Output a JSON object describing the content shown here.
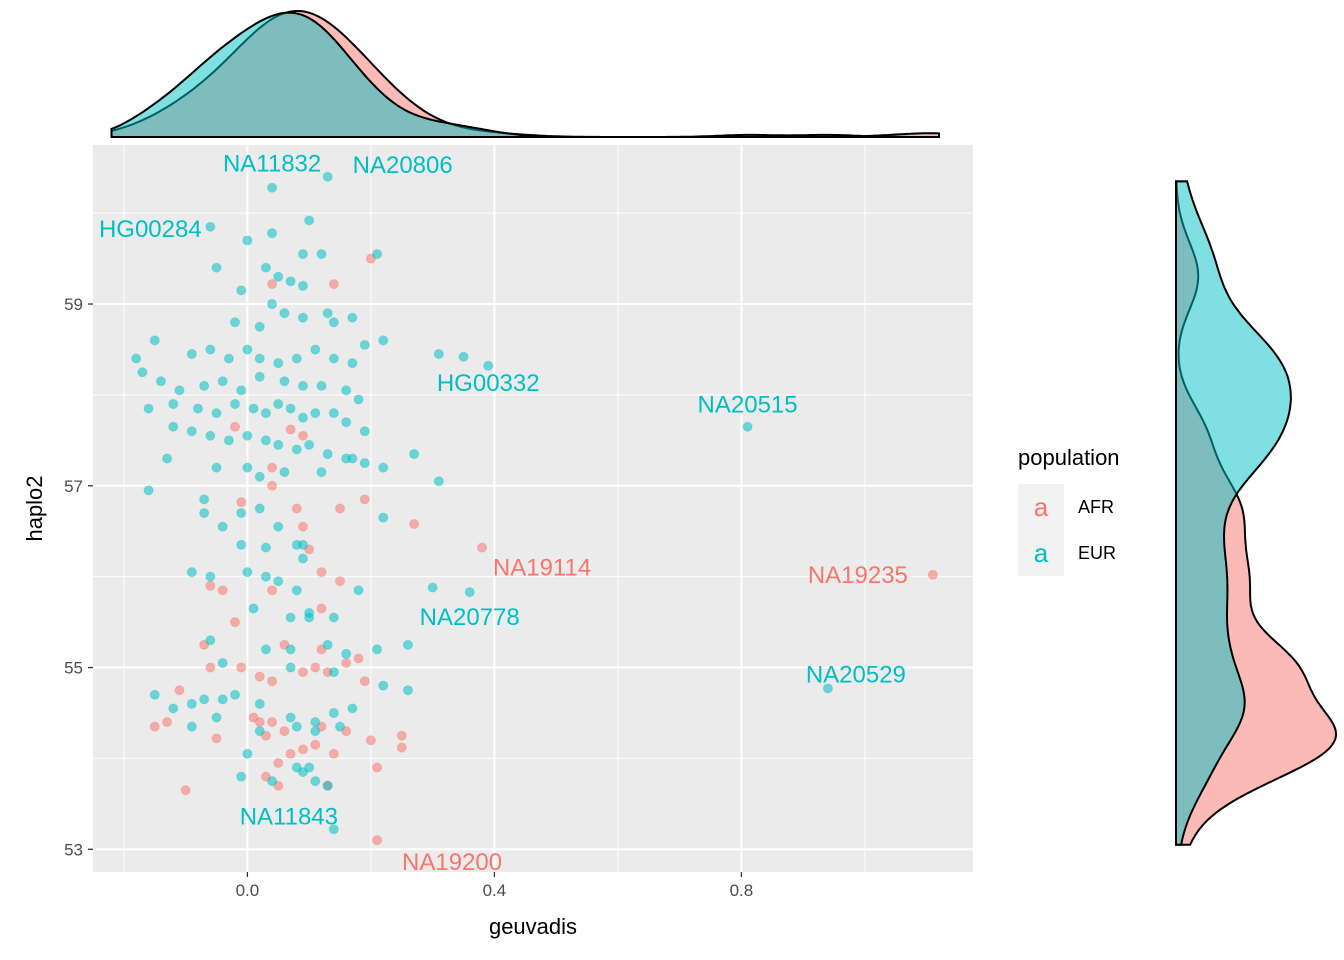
{
  "chart_data": {
    "type": "scatter",
    "xlabel": "geuvadis",
    "ylabel": "haplo2",
    "xlim": [
      -0.25,
      1.175
    ],
    "ylim": [
      52.75,
      60.75
    ],
    "x_ticks": [
      0.0,
      0.4,
      0.8
    ],
    "x_tick_labels": [
      "0.0",
      "0.4",
      "0.8"
    ],
    "y_ticks": [
      53,
      55,
      57,
      59
    ],
    "y_tick_labels": [
      "53",
      "55",
      "57",
      "59"
    ],
    "grid": true,
    "legend": {
      "title": "population",
      "placement": "right",
      "key_glyph": "a",
      "entries": [
        {
          "name": "AFR",
          "color": "#F8766D"
        },
        {
          "name": "EUR",
          "color": "#00BFC4"
        }
      ]
    },
    "colors": {
      "AFR": "#F8766D",
      "EUR": "#00BFC4"
    },
    "labeled_points": [
      {
        "label": "NA11832",
        "population": "EUR",
        "x": 0.04,
        "y": 60.28
      },
      {
        "label": "NA20806",
        "population": "EUR",
        "x": 0.13,
        "y": 60.4
      },
      {
        "label": "HG00284",
        "population": "EUR",
        "x": -0.06,
        "y": 59.85
      },
      {
        "label": "HG00332",
        "population": "EUR",
        "x": 0.39,
        "y": 58.32
      },
      {
        "label": "NA20515",
        "population": "EUR",
        "x": 0.81,
        "y": 57.65
      },
      {
        "label": "NA19114",
        "population": "AFR",
        "x": 0.38,
        "y": 56.32
      },
      {
        "label": "NA19235",
        "population": "AFR",
        "x": 1.11,
        "y": 56.02
      },
      {
        "label": "NA20778",
        "population": "EUR",
        "x": 0.36,
        "y": 55.83
      },
      {
        "label": "NA20529",
        "population": "EUR",
        "x": 0.94,
        "y": 54.77
      },
      {
        "label": "NA11843",
        "population": "EUR",
        "x": 0.14,
        "y": 53.22
      },
      {
        "label": "NA19200",
        "population": "AFR",
        "x": 0.21,
        "y": 53.1
      }
    ],
    "series": [
      {
        "name": "AFR",
        "points": [
          [
            0.04,
            59.22
          ],
          [
            0.14,
            59.22
          ],
          [
            0.2,
            59.5
          ],
          [
            -0.02,
            57.65
          ],
          [
            0.07,
            57.62
          ],
          [
            0.04,
            57.2
          ],
          [
            0.09,
            57.55
          ],
          [
            0.04,
            57.0
          ],
          [
            -0.01,
            56.82
          ],
          [
            0.08,
            56.75
          ],
          [
            0.09,
            56.55
          ],
          [
            0.15,
            56.75
          ],
          [
            0.19,
            56.85
          ],
          [
            0.27,
            56.58
          ],
          [
            0.1,
            56.3
          ],
          [
            0.38,
            56.32
          ],
          [
            0.12,
            56.05
          ],
          [
            0.15,
            55.95
          ],
          [
            -0.06,
            55.9
          ],
          [
            -0.04,
            55.85
          ],
          [
            0.04,
            55.85
          ],
          [
            0.12,
            55.65
          ],
          [
            -0.02,
            55.5
          ],
          [
            -0.07,
            55.25
          ],
          [
            0.06,
            55.25
          ],
          [
            0.12,
            55.2
          ],
          [
            0.18,
            55.1
          ],
          [
            -0.01,
            55.0
          ],
          [
            -0.06,
            55.0
          ],
          [
            0.02,
            54.9
          ],
          [
            0.04,
            54.85
          ],
          [
            0.09,
            54.95
          ],
          [
            0.11,
            55.0
          ],
          [
            0.13,
            54.95
          ],
          [
            0.16,
            55.05
          ],
          [
            0.19,
            54.85
          ],
          [
            -0.11,
            54.75
          ],
          [
            -0.13,
            54.4
          ],
          [
            -0.15,
            54.35
          ],
          [
            0.01,
            54.45
          ],
          [
            0.04,
            54.4
          ],
          [
            0.06,
            54.3
          ],
          [
            0.12,
            54.35
          ],
          [
            0.16,
            54.3
          ],
          [
            0.2,
            54.2
          ],
          [
            0.25,
            54.25
          ],
          [
            0.25,
            54.12
          ],
          [
            -0.05,
            54.22
          ],
          [
            0.03,
            54.25
          ],
          [
            0.09,
            54.1
          ],
          [
            0.11,
            54.15
          ],
          [
            0.05,
            53.95
          ],
          [
            0.21,
            53.9
          ],
          [
            0.03,
            53.8
          ],
          [
            0.05,
            53.7
          ],
          [
            0.13,
            53.7
          ],
          [
            -0.1,
            53.65
          ],
          [
            0.21,
            53.1
          ],
          [
            1.11,
            56.02
          ],
          [
            0.02,
            54.4
          ],
          [
            0.07,
            54.05
          ],
          [
            0.14,
            54.05
          ]
        ]
      },
      {
        "name": "EUR",
        "points": [
          [
            0.04,
            60.28
          ],
          [
            0.13,
            60.4
          ],
          [
            -0.06,
            59.85
          ],
          [
            0.1,
            59.92
          ],
          [
            0.0,
            59.7
          ],
          [
            0.04,
            59.78
          ],
          [
            0.09,
            59.55
          ],
          [
            0.12,
            59.55
          ],
          [
            0.21,
            59.55
          ],
          [
            -0.05,
            59.4
          ],
          [
            0.03,
            59.4
          ],
          [
            0.05,
            59.3
          ],
          [
            0.07,
            59.25
          ],
          [
            0.09,
            59.2
          ],
          [
            -0.01,
            59.15
          ],
          [
            0.04,
            59.0
          ],
          [
            0.06,
            58.9
          ],
          [
            0.09,
            58.85
          ],
          [
            0.13,
            58.9
          ],
          [
            0.14,
            58.8
          ],
          [
            0.17,
            58.85
          ],
          [
            -0.02,
            58.8
          ],
          [
            0.02,
            58.75
          ],
          [
            -0.15,
            58.6
          ],
          [
            -0.09,
            58.45
          ],
          [
            -0.06,
            58.5
          ],
          [
            -0.03,
            58.4
          ],
          [
            0.0,
            58.5
          ],
          [
            0.02,
            58.4
          ],
          [
            0.05,
            58.35
          ],
          [
            0.08,
            58.4
          ],
          [
            0.11,
            58.5
          ],
          [
            0.14,
            58.4
          ],
          [
            0.17,
            58.35
          ],
          [
            0.19,
            58.55
          ],
          [
            0.22,
            58.6
          ],
          [
            0.31,
            58.45
          ],
          [
            0.35,
            58.42
          ],
          [
            0.39,
            58.32
          ],
          [
            -0.18,
            58.4
          ],
          [
            -0.17,
            58.25
          ],
          [
            -0.14,
            58.15
          ],
          [
            -0.11,
            58.05
          ],
          [
            -0.07,
            58.1
          ],
          [
            -0.04,
            58.15
          ],
          [
            -0.01,
            58.05
          ],
          [
            0.02,
            58.2
          ],
          [
            0.06,
            58.15
          ],
          [
            0.09,
            58.1
          ],
          [
            0.12,
            58.1
          ],
          [
            0.16,
            58.05
          ],
          [
            0.18,
            57.95
          ],
          [
            -0.16,
            57.85
          ],
          [
            -0.12,
            57.9
          ],
          [
            -0.08,
            57.85
          ],
          [
            -0.05,
            57.8
          ],
          [
            -0.02,
            57.9
          ],
          [
            0.01,
            57.85
          ],
          [
            0.03,
            57.8
          ],
          [
            0.05,
            57.9
          ],
          [
            0.07,
            57.85
          ],
          [
            0.09,
            57.75
          ],
          [
            0.11,
            57.8
          ],
          [
            0.14,
            57.8
          ],
          [
            0.16,
            57.7
          ],
          [
            0.19,
            57.6
          ],
          [
            0.81,
            57.65
          ],
          [
            -0.12,
            57.65
          ],
          [
            -0.09,
            57.6
          ],
          [
            -0.06,
            57.55
          ],
          [
            -0.03,
            57.5
          ],
          [
            0.0,
            57.55
          ],
          [
            0.03,
            57.5
          ],
          [
            0.05,
            57.45
          ],
          [
            0.08,
            57.4
          ],
          [
            0.1,
            57.45
          ],
          [
            0.13,
            57.35
          ],
          [
            0.16,
            57.3
          ],
          [
            0.19,
            57.25
          ],
          [
            0.22,
            57.2
          ],
          [
            0.27,
            57.35
          ],
          [
            0.31,
            57.05
          ],
          [
            -0.13,
            57.3
          ],
          [
            -0.05,
            57.2
          ],
          [
            0.0,
            57.2
          ],
          [
            0.02,
            57.1
          ],
          [
            0.06,
            57.15
          ],
          [
            0.12,
            57.15
          ],
          [
            0.17,
            57.3
          ],
          [
            -0.16,
            56.95
          ],
          [
            -0.07,
            56.85
          ],
          [
            -0.01,
            56.7
          ],
          [
            0.02,
            56.75
          ],
          [
            -0.07,
            56.7
          ],
          [
            -0.04,
            56.55
          ],
          [
            0.05,
            56.55
          ],
          [
            0.09,
            56.35
          ],
          [
            0.22,
            56.65
          ],
          [
            -0.01,
            56.35
          ],
          [
            0.03,
            56.32
          ],
          [
            0.08,
            56.35
          ],
          [
            0.09,
            56.2
          ],
          [
            -0.09,
            56.05
          ],
          [
            -0.06,
            56.0
          ],
          [
            0.0,
            56.05
          ],
          [
            0.03,
            56.0
          ],
          [
            0.05,
            55.95
          ],
          [
            0.08,
            55.85
          ],
          [
            0.18,
            55.85
          ],
          [
            0.3,
            55.88
          ],
          [
            0.36,
            55.83
          ],
          [
            0.01,
            55.65
          ],
          [
            0.07,
            55.55
          ],
          [
            0.1,
            55.6
          ],
          [
            0.1,
            55.55
          ],
          [
            0.14,
            55.55
          ],
          [
            -0.06,
            55.3
          ],
          [
            0.03,
            55.2
          ],
          [
            0.07,
            55.2
          ],
          [
            0.13,
            55.25
          ],
          [
            0.16,
            55.15
          ],
          [
            0.21,
            55.2
          ],
          [
            0.26,
            55.25
          ],
          [
            -0.04,
            55.05
          ],
          [
            0.07,
            55.0
          ],
          [
            0.14,
            54.95
          ],
          [
            0.22,
            54.8
          ],
          [
            0.26,
            54.75
          ],
          [
            0.94,
            54.77
          ],
          [
            -0.15,
            54.7
          ],
          [
            -0.12,
            54.55
          ],
          [
            -0.09,
            54.6
          ],
          [
            -0.07,
            54.65
          ],
          [
            -0.04,
            54.65
          ],
          [
            -0.02,
            54.7
          ],
          [
            0.02,
            54.6
          ],
          [
            0.07,
            54.45
          ],
          [
            0.11,
            54.4
          ],
          [
            0.14,
            54.5
          ],
          [
            0.17,
            54.55
          ],
          [
            -0.05,
            54.45
          ],
          [
            -0.09,
            54.35
          ],
          [
            0.02,
            54.3
          ],
          [
            0.08,
            54.35
          ],
          [
            0.11,
            54.3
          ],
          [
            0.15,
            54.35
          ],
          [
            0.0,
            54.05
          ],
          [
            0.08,
            53.9
          ],
          [
            0.09,
            53.85
          ],
          [
            0.1,
            53.9
          ],
          [
            0.11,
            53.75
          ],
          [
            0.13,
            53.7
          ],
          [
            -0.01,
            53.8
          ],
          [
            0.04,
            53.75
          ],
          [
            0.14,
            53.22
          ]
        ]
      }
    ]
  }
}
